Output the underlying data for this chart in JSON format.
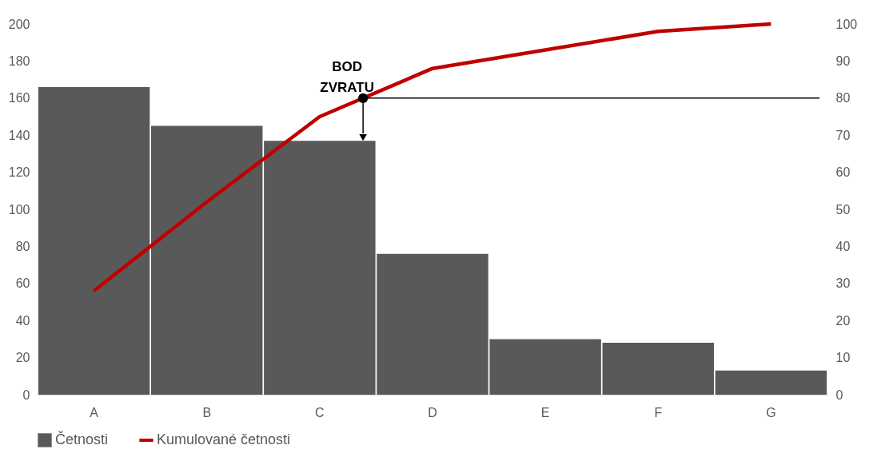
{
  "chart_data": {
    "type": "bar",
    "categories": [
      "A",
      "B",
      "C",
      "D",
      "E",
      "F",
      "G"
    ],
    "series": [
      {
        "name": "Četnosti",
        "color": "#595959",
        "values": [
          166,
          145,
          137,
          76,
          30,
          28,
          13
        ]
      },
      {
        "name": "Kumulované četnosti",
        "type": "line",
        "axis": "y2",
        "color": "#c00000",
        "values": [
          28,
          52,
          75,
          88,
          93,
          98,
          100
        ]
      }
    ],
    "ylim": [
      0,
      200
    ],
    "yticks": [
      0,
      20,
      40,
      60,
      80,
      100,
      120,
      140,
      160,
      180,
      200
    ],
    "y2lim": [
      0,
      100
    ],
    "y2ticks": [
      0,
      10,
      20,
      30,
      40,
      50,
      60,
      70,
      80,
      90,
      100
    ],
    "ref_lines": [
      {
        "axis": "y2",
        "value": 80,
        "color": "#000000"
      }
    ],
    "annotations": [
      "BOD ZVRATU"
    ],
    "grid": false,
    "legend": "bottom",
    "marker": "none",
    "line_style": "solid"
  }
}
